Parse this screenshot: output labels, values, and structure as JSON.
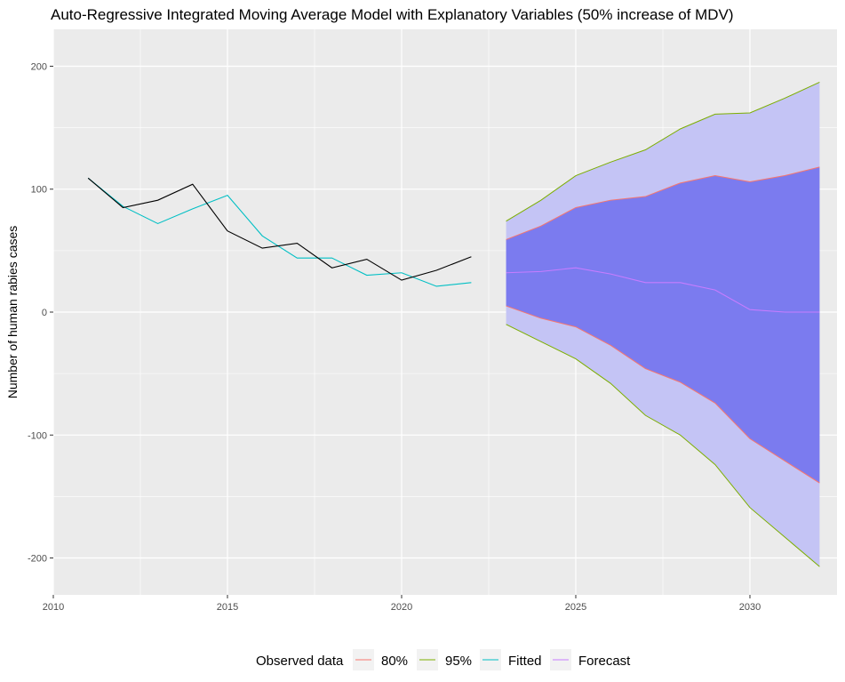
{
  "chart_data": {
    "type": "line",
    "title": "Auto-Regressive Integrated Moving Average Model with Explanatory Variables (50% increase of MDV)",
    "xlabel": "",
    "ylabel": "Number of human rabies cases",
    "xlim": [
      2010,
      2032.5
    ],
    "ylim": [
      -230,
      230
    ],
    "x_ticks": [
      2010,
      2015,
      2020,
      2025,
      2030
    ],
    "y_ticks": [
      -200,
      -100,
      0,
      100,
      200
    ],
    "grid": true,
    "legend": {
      "position": "bottom",
      "title": "Observed data",
      "entries": [
        "80%",
        "95%",
        "Fitted",
        "Forecast"
      ]
    },
    "colors": {
      "panel": "#ebebeb",
      "grid": "#ffffff",
      "observed": "#000000",
      "fitted": "#00bfc4",
      "forecast": "#c77cff",
      "band80_fill": "#7b7bef",
      "band80_line": "#f8766d",
      "band95_fill": "#c4c4f5",
      "band95_line": "#7cae00"
    },
    "observed": {
      "x": [
        2011,
        2012,
        2013,
        2014,
        2015,
        2016,
        2017,
        2018,
        2019,
        2020,
        2021,
        2022
      ],
      "values": [
        109,
        85,
        91,
        104,
        66,
        52,
        56,
        36,
        43,
        26,
        34,
        45
      ]
    },
    "series": [
      {
        "name": "Fitted",
        "x": [
          2011,
          2012,
          2013,
          2014,
          2015,
          2016,
          2017,
          2018,
          2019,
          2020,
          2021,
          2022
        ],
        "values": [
          109,
          86,
          72,
          84,
          95,
          62,
          44,
          44,
          30,
          32,
          21,
          24
        ]
      },
      {
        "name": "Forecast",
        "x": [
          2023,
          2024,
          2025,
          2026,
          2027,
          2028,
          2029,
          2030,
          2031,
          2032
        ],
        "values": [
          32,
          33,
          36,
          31,
          24,
          24,
          18,
          2,
          0,
          0
        ]
      },
      {
        "name": "80%",
        "x": [
          2023,
          2024,
          2025,
          2026,
          2027,
          2028,
          2029,
          2030,
          2031,
          2032
        ],
        "lower": [
          5,
          -5,
          -12,
          -27,
          -46,
          -57,
          -74,
          -103,
          -121,
          -139
        ],
        "upper": [
          59,
          70,
          85,
          91,
          94,
          105,
          111,
          106,
          111,
          118
        ]
      },
      {
        "name": "95%",
        "x": [
          2023,
          2024,
          2025,
          2026,
          2027,
          2028,
          2029,
          2030,
          2031,
          2032
        ],
        "lower": [
          -10,
          -24,
          -38,
          -58,
          -84,
          -100,
          -124,
          -159,
          -183,
          -207
        ],
        "upper": [
          74,
          91,
          111,
          122,
          132,
          149,
          161,
          162,
          174,
          187
        ]
      }
    ]
  }
}
